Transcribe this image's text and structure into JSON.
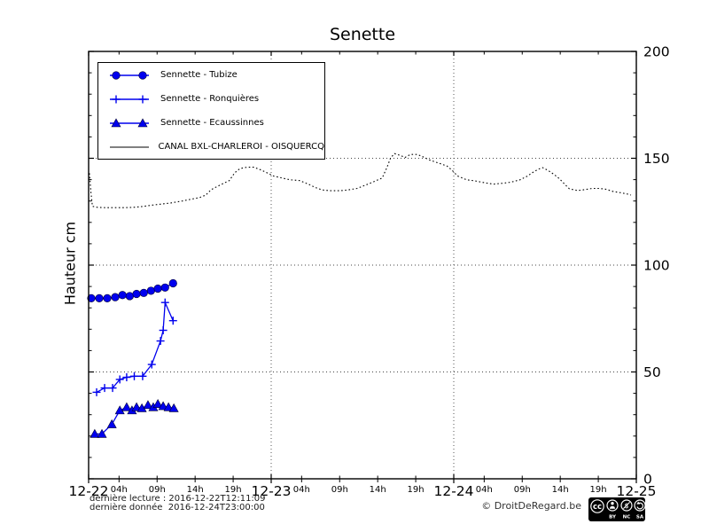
{
  "annotations": {
    "last_reading": "dernière lecture : 2016-12-22T12:11:09",
    "last_data": "dernière donnée  2016-12-24T23:00:00",
    "copyright": "© DroitDeRegard.be",
    "license_parts": [
      "BY",
      "NC",
      "SA"
    ],
    "license_name": "cc"
  },
  "colors": {
    "series_blue": "#0000ee",
    "canal_black": "#000000",
    "grid": "#444444",
    "frame": "#000000"
  },
  "chart_data": {
    "type": "line",
    "title": "Senette",
    "ylabel": "Hauteur cm",
    "xlim_hours": [
      0,
      72
    ],
    "ylim": [
      0,
      200
    ],
    "grid": "dotted",
    "legend_position": "upper-left",
    "y_ticks": [
      0,
      50,
      100,
      150,
      200
    ],
    "y_minor_step": 10,
    "y_gridlines": [
      50,
      100,
      150
    ],
    "x_day_gridlines": [
      24,
      48
    ],
    "x_day_ticks": [
      {
        "h": 0,
        "label": "12-22"
      },
      {
        "h": 24,
        "label": "12-23"
      },
      {
        "h": 48,
        "label": "12-24"
      },
      {
        "h": 72,
        "label": "12-25"
      }
    ],
    "x_hour_ticks": [
      {
        "h": 4,
        "label": "04h"
      },
      {
        "h": 9,
        "label": "09h"
      },
      {
        "h": 14,
        "label": "14h"
      },
      {
        "h": 19,
        "label": "19h"
      },
      {
        "h": 28,
        "label": "04h"
      },
      {
        "h": 33,
        "label": "09h"
      },
      {
        "h": 38,
        "label": "14h"
      },
      {
        "h": 43,
        "label": "19h"
      },
      {
        "h": 52,
        "label": "04h"
      },
      {
        "h": 57,
        "label": "09h"
      },
      {
        "h": 62,
        "label": "14h"
      },
      {
        "h": 67,
        "label": "19h"
      }
    ],
    "series": [
      {
        "name": "Sennette - Tubize",
        "marker": "circle",
        "line": "solid",
        "color": "#0000ee",
        "points": [
          [
            0.35,
            84.5
          ],
          [
            1.4,
            84.5
          ],
          [
            2.45,
            84.5
          ],
          [
            3.5,
            85
          ],
          [
            4.45,
            86
          ],
          [
            5.4,
            85.5
          ],
          [
            6.3,
            86.5
          ],
          [
            7.25,
            87
          ],
          [
            8.2,
            88
          ],
          [
            9.1,
            89
          ],
          [
            10.05,
            89.5
          ],
          [
            11.1,
            91.5
          ]
        ]
      },
      {
        "name": "Sennette - Ronquières",
        "marker": "plus",
        "line": "solid",
        "color": "#0000ee",
        "points": [
          [
            1.05,
            40.5
          ],
          [
            2.1,
            42.5
          ],
          [
            3.15,
            42.5
          ],
          [
            4.1,
            46.5
          ],
          [
            5.0,
            47.5
          ],
          [
            6.0,
            48
          ],
          [
            7.1,
            48
          ],
          [
            8.3,
            53.5
          ],
          [
            9.45,
            64.5
          ],
          [
            9.8,
            69.5
          ],
          [
            10.05,
            82.5
          ],
          [
            11.1,
            74
          ]
        ]
      },
      {
        "name": "Sennette - Ecaussinnes",
        "marker": "triangle",
        "line": "solid",
        "color": "#0000ee",
        "points": [
          [
            0.8,
            21
          ],
          [
            1.75,
            21
          ],
          [
            3.05,
            25.5
          ],
          [
            4.1,
            32
          ],
          [
            5.0,
            33.5
          ],
          [
            5.7,
            32
          ],
          [
            6.3,
            33.5
          ],
          [
            7.0,
            33
          ],
          [
            7.8,
            34.5
          ],
          [
            8.5,
            33.5
          ],
          [
            9.1,
            35
          ],
          [
            9.8,
            34
          ],
          [
            10.5,
            33.5
          ],
          [
            11.2,
            33
          ]
        ]
      },
      {
        "name": "CANAL BXL-CHARLEROI  - OISQUERCQ",
        "marker": "none",
        "line": "dotted",
        "color": "#000000",
        "points": [
          [
            0.1,
            143
          ],
          [
            0.2,
            139
          ],
          [
            0.3,
            134
          ],
          [
            0.5,
            127.5
          ],
          [
            1.2,
            127
          ],
          [
            2.3,
            126.9
          ],
          [
            3.5,
            126.9
          ],
          [
            4.7,
            126.9
          ],
          [
            5.8,
            127
          ],
          [
            6.8,
            127.3
          ],
          [
            8.4,
            128.1
          ],
          [
            9.6,
            128.6
          ],
          [
            10.8,
            129.1
          ],
          [
            12.3,
            130
          ],
          [
            13.4,
            130.8
          ],
          [
            14.6,
            131.6
          ],
          [
            15.4,
            132.8
          ],
          [
            16.1,
            135.3
          ],
          [
            17.3,
            137.5
          ],
          [
            18.5,
            139.6
          ],
          [
            19.2,
            143.2
          ],
          [
            19.9,
            145.2
          ],
          [
            20.8,
            145.8
          ],
          [
            21.7,
            145.8
          ],
          [
            22.4,
            144.9
          ],
          [
            23.1,
            143.8
          ],
          [
            24.3,
            141.7
          ],
          [
            25.4,
            140.8
          ],
          [
            26.5,
            139.9
          ],
          [
            27.7,
            139.6
          ],
          [
            28.9,
            137.9
          ],
          [
            29.8,
            136.3
          ],
          [
            30.7,
            135.2
          ],
          [
            31.8,
            134.8
          ],
          [
            33,
            134.8
          ],
          [
            34.1,
            135.2
          ],
          [
            35.3,
            135.9
          ],
          [
            36.5,
            137.6
          ],
          [
            37.6,
            139.2
          ],
          [
            38.6,
            140.8
          ],
          [
            39.2,
            145.6
          ],
          [
            39.7,
            150.2
          ],
          [
            40.2,
            152.2
          ],
          [
            40.9,
            151.4
          ],
          [
            41.6,
            150.4
          ],
          [
            42.3,
            151.8
          ],
          [
            43.2,
            151.8
          ],
          [
            43.9,
            150.8
          ],
          [
            44.8,
            149.2
          ],
          [
            45.9,
            147.9
          ],
          [
            47.1,
            146.4
          ],
          [
            47.8,
            144.3
          ],
          [
            48.5,
            141.7
          ],
          [
            49.7,
            139.9
          ],
          [
            50.8,
            139.4
          ],
          [
            52,
            138.6
          ],
          [
            53.2,
            137.9
          ],
          [
            54.4,
            138.3
          ],
          [
            55.5,
            138.8
          ],
          [
            56.7,
            139.9
          ],
          [
            57.6,
            141.5
          ],
          [
            58.4,
            143.4
          ],
          [
            59.1,
            144.9
          ],
          [
            59.7,
            145.6
          ],
          [
            60.4,
            144.3
          ],
          [
            61.2,
            142.4
          ],
          [
            61.9,
            140.4
          ],
          [
            62.6,
            137.8
          ],
          [
            63.2,
            135.7
          ],
          [
            64.3,
            134.9
          ],
          [
            65.2,
            135.3
          ],
          [
            66.2,
            135.9
          ],
          [
            67.1,
            135.9
          ],
          [
            68,
            135.5
          ],
          [
            69,
            134.4
          ],
          [
            69.9,
            133.9
          ],
          [
            70.9,
            133.2
          ],
          [
            71.3,
            132.8
          ]
        ]
      }
    ]
  }
}
